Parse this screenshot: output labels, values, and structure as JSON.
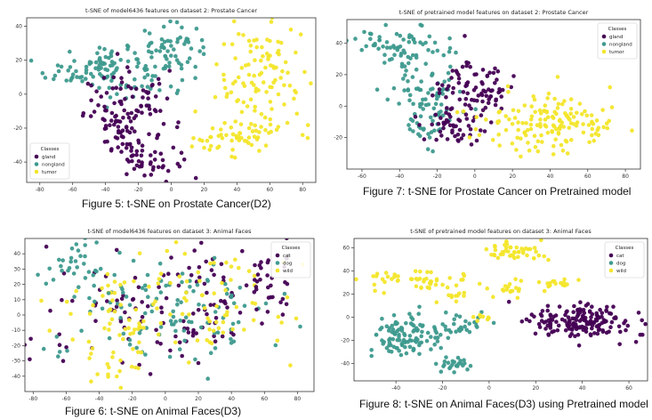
{
  "colors": {
    "class0": "#440154",
    "class1": "#3e9a8e",
    "class2": "#f3e62b"
  },
  "captions": {
    "fig5": "Figure 5: t-SNE on Prostate Cancer(D2)",
    "fig6": "Figure 6: t-SNE on Animal Faces(D3)",
    "fig7": "Figure 7: t-SNE for Prostate Cancer on Pretrained model",
    "fig8": "Figure 8: t-SNE on Animal Faces(D3) using Pretrained model"
  },
  "chart_data": [
    {
      "id": "fig5",
      "type": "scatter",
      "title": "t-SNE of model6436 features on dataset 2: Prostate Cancer",
      "xlim": [
        -88,
        88
      ],
      "ylim": [
        -52,
        45
      ],
      "xticks": [
        -80,
        -60,
        -40,
        -20,
        0,
        20,
        40,
        60,
        80
      ],
      "yticks": [
        -40,
        -20,
        0,
        20,
        40
      ],
      "grid": false,
      "legend": {
        "title": "Classes",
        "position": "bottom-left",
        "entries": [
          "gland",
          "nongland",
          "tumor"
        ]
      },
      "clusters": [
        {
          "cls": 1,
          "cx": -40,
          "cy": 15,
          "sx": 18,
          "sy": 8,
          "n": 110
        },
        {
          "cls": 1,
          "cx": -2,
          "cy": 25,
          "sx": 12,
          "sy": 8,
          "n": 60
        },
        {
          "cls": 0,
          "cx": -25,
          "cy": -12,
          "sx": 14,
          "sy": 12,
          "n": 110
        },
        {
          "cls": 0,
          "cx": -15,
          "cy": -35,
          "sx": 10,
          "sy": 8,
          "n": 50
        },
        {
          "cls": 2,
          "cx": 55,
          "cy": 10,
          "sx": 14,
          "sy": 16,
          "n": 100
        },
        {
          "cls": 2,
          "cx": 40,
          "cy": -25,
          "sx": 16,
          "sy": 6,
          "n": 60
        }
      ]
    },
    {
      "id": "fig6",
      "type": "scatter",
      "title": "t-SNE of model6436 features on dataset 3: Animal Faces",
      "xlim": [
        -85,
        90
      ],
      "ylim": [
        -50,
        50
      ],
      "xticks": [
        -80,
        -60,
        -40,
        -20,
        0,
        20,
        40,
        60,
        80
      ],
      "yticks": [
        -40,
        -30,
        -20,
        -10,
        0,
        10,
        20,
        30,
        40
      ],
      "grid": false,
      "legend": {
        "title": "Classes",
        "position": "top-right",
        "entries": [
          "cat",
          "dog",
          "wild"
        ]
      },
      "clusters": [
        {
          "cls": 0,
          "cx": 0,
          "cy": 5,
          "sx": 38,
          "sy": 18,
          "n": 120
        },
        {
          "cls": 1,
          "cx": 0,
          "cy": 5,
          "sx": 38,
          "sy": 18,
          "n": 120
        },
        {
          "cls": 2,
          "cx": 0,
          "cy": 5,
          "sx": 38,
          "sy": 18,
          "n": 120
        },
        {
          "cls": 1,
          "cx": -50,
          "cy": 30,
          "sx": 8,
          "sy": 10,
          "n": 30
        },
        {
          "cls": 0,
          "cx": 60,
          "cy": 25,
          "sx": 10,
          "sy": 10,
          "n": 30
        },
        {
          "cls": 2,
          "cx": -30,
          "cy": -35,
          "sx": 10,
          "sy": 6,
          "n": 20
        }
      ]
    },
    {
      "id": "fig7",
      "type": "scatter",
      "title": "t-SNE of pretrained model features on dataset 2: Prostate Cancer",
      "xlim": [
        -68,
        88
      ],
      "ylim": [
        -40,
        55
      ],
      "xticks": [
        -60,
        -40,
        -20,
        0,
        20,
        40,
        60,
        80
      ],
      "yticks": [
        -20,
        0,
        20,
        40
      ],
      "grid": false,
      "legend": {
        "title": "Classes",
        "position": "top-right",
        "entries": [
          "gland",
          "nongland",
          "tumor"
        ]
      },
      "clusters": [
        {
          "cls": 1,
          "cx": -40,
          "cy": 40,
          "sx": 12,
          "sy": 6,
          "n": 60
        },
        {
          "cls": 1,
          "cx": -25,
          "cy": 10,
          "sx": 10,
          "sy": 12,
          "n": 70
        },
        {
          "cls": 1,
          "cx": -25,
          "cy": -10,
          "sx": 8,
          "sy": 8,
          "n": 30
        },
        {
          "cls": 0,
          "cx": 0,
          "cy": 10,
          "sx": 10,
          "sy": 10,
          "n": 90
        },
        {
          "cls": 0,
          "cx": -10,
          "cy": -15,
          "sx": 8,
          "sy": 6,
          "n": 40
        },
        {
          "cls": 2,
          "cx": 40,
          "cy": -10,
          "sx": 18,
          "sy": 9,
          "n": 150
        }
      ]
    },
    {
      "id": "fig8",
      "type": "scatter",
      "title": "t-SNE of pretrained model features on dataset 3: Animal Faces",
      "xlim": [
        -58,
        68
      ],
      "ylim": [
        -55,
        68
      ],
      "xticks": [
        -40,
        -20,
        0,
        20,
        40,
        60
      ],
      "yticks": [
        -40,
        -20,
        0,
        20,
        40,
        60
      ],
      "grid": false,
      "legend": {
        "title": "Classes",
        "position": "top-right",
        "entries": [
          "cat",
          "dog",
          "wild"
        ]
      },
      "clusters": [
        {
          "cls": 0,
          "cx": 40,
          "cy": -4,
          "sx": 11,
          "sy": 8,
          "n": 170
        },
        {
          "cls": 1,
          "cx": -35,
          "cy": -15,
          "sx": 9,
          "sy": 9,
          "n": 110
        },
        {
          "cls": 1,
          "cx": -15,
          "cy": -40,
          "sx": 4,
          "sy": 4,
          "n": 25
        },
        {
          "cls": 1,
          "cx": -10,
          "cy": -5,
          "sx": 6,
          "sy": 5,
          "n": 25
        },
        {
          "cls": 2,
          "cx": 10,
          "cy": 55,
          "sx": 6,
          "sy": 5,
          "n": 45
        },
        {
          "cls": 2,
          "cx": -35,
          "cy": 32,
          "sx": 12,
          "sy": 5,
          "n": 50
        },
        {
          "cls": 2,
          "cx": 10,
          "cy": 25,
          "sx": 6,
          "sy": 4,
          "n": 20
        },
        {
          "cls": 2,
          "cx": 30,
          "cy": 30,
          "sx": 5,
          "sy": 3,
          "n": 15
        },
        {
          "cls": 2,
          "cx": -15,
          "cy": 20,
          "sx": 4,
          "sy": 3,
          "n": 10
        },
        {
          "cls": 2,
          "cx": -3,
          "cy": 0,
          "sx": 3,
          "sy": 2,
          "n": 8
        }
      ]
    }
  ]
}
